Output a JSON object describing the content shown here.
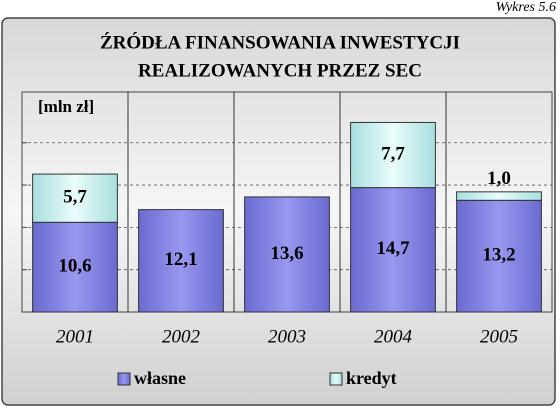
{
  "chart_data": {
    "type": "stacked_bar",
    "caption": "Wykres 5.6",
    "title": [
      "ŹRÓDŁA FINANSOWANIA INWESTYCJI",
      "REALIZOWANYCH PRZEZ SEC"
    ],
    "y_label": "[mln zł]",
    "categories": [
      "2001",
      "2002",
      "2003",
      "2004",
      "2005"
    ],
    "series": [
      {
        "name": "własne",
        "color": "#7c7ce0",
        "values": [
          10.6,
          12.1,
          13.6,
          14.7,
          13.2
        ],
        "value_labels": [
          "10,6",
          "12,1",
          "13,6",
          "14,7",
          "13,2"
        ]
      },
      {
        "name": "kredyt",
        "color": "#c6eeee",
        "values": [
          5.7,
          null,
          null,
          7.7,
          1.0
        ],
        "value_labels": [
          "5,7",
          null,
          null,
          "7,7",
          "1,0"
        ]
      }
    ],
    "ylim": [
      0,
      26
    ],
    "yticks": [
      5,
      10,
      15,
      20
    ],
    "grid": true
  }
}
